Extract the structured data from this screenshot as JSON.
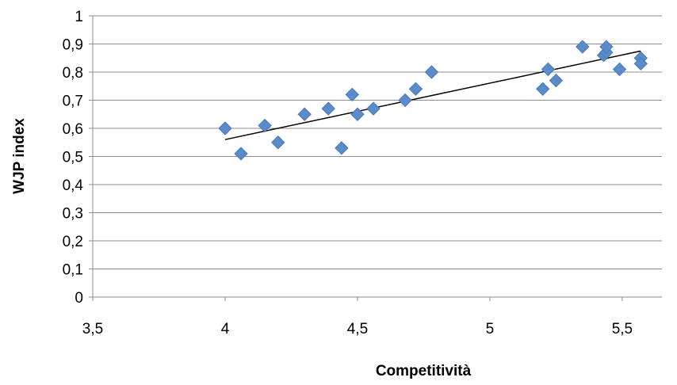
{
  "chart_data": {
    "type": "scatter",
    "title": "",
    "xlabel": "Competitività",
    "ylabel": "WJP index",
    "xlim": [
      3.5,
      5.65
    ],
    "ylim": [
      0,
      1
    ],
    "x_ticks": [
      3.5,
      4,
      4.5,
      5,
      5.5
    ],
    "x_tick_labels": [
      "3,5",
      "4",
      "4,5",
      "5",
      "5,5"
    ],
    "y_ticks": [
      0,
      0.1,
      0.2,
      0.3,
      0.4,
      0.5,
      0.6,
      0.7,
      0.8,
      0.9,
      1
    ],
    "y_tick_labels": [
      "0",
      "0,1",
      "0,2",
      "0,3",
      "0,4",
      "0,5",
      "0,6",
      "0,7",
      "0,8",
      "0,9",
      "1"
    ],
    "grid": true,
    "legend": false,
    "marker": "diamond",
    "colors": {
      "marker": "#5b8cc9",
      "marker_edge": "#4a78b3",
      "trendline": "#000000",
      "grid": "#8c8c8c",
      "axis": "#8c8c8c"
    },
    "series": [
      {
        "points": [
          [
            4.0,
            0.6
          ],
          [
            4.06,
            0.51
          ],
          [
            4.15,
            0.61
          ],
          [
            4.2,
            0.55
          ],
          [
            4.3,
            0.65
          ],
          [
            4.39,
            0.67
          ],
          [
            4.44,
            0.53
          ],
          [
            4.48,
            0.72
          ],
          [
            4.5,
            0.65
          ],
          [
            4.56,
            0.67
          ],
          [
            4.68,
            0.7
          ],
          [
            4.72,
            0.74
          ],
          [
            4.78,
            0.8
          ],
          [
            5.2,
            0.74
          ],
          [
            5.22,
            0.81
          ],
          [
            5.25,
            0.77
          ],
          [
            5.35,
            0.89
          ],
          [
            5.43,
            0.86
          ],
          [
            5.44,
            0.87
          ],
          [
            5.44,
            0.89
          ],
          [
            5.49,
            0.81
          ],
          [
            5.57,
            0.85
          ],
          [
            5.57,
            0.83
          ]
        ]
      }
    ],
    "trendline": {
      "type": "linear",
      "x": [
        4.0,
        5.57
      ],
      "y": [
        0.56,
        0.875
      ]
    }
  }
}
